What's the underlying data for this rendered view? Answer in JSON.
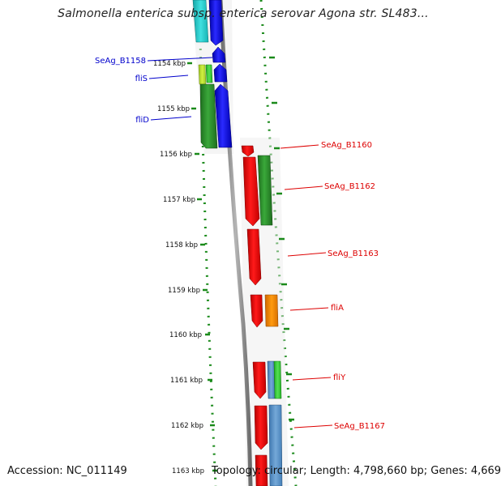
{
  "title": "Salmonella enterica subsp. enterica serovar Agona str. SL483...",
  "footer": {
    "accession": "Accession: NC_011149",
    "summary": "Topology: circular; Length: 4,798,660 bp; Genes: 4,669"
  },
  "colors": {
    "left_label": "#0000cc",
    "right_label": "#dd0000",
    "backbone": "#909090",
    "dotted_guide": "#1a8a1a"
  },
  "kbp_ticks": [
    {
      "kbp": 1154,
      "label": "1154 kbp"
    },
    {
      "kbp": 1155,
      "label": "1155 kbp"
    },
    {
      "kbp": 1156,
      "label": "1156 kbp"
    },
    {
      "kbp": 1157,
      "label": "1157 kbp"
    },
    {
      "kbp": 1158,
      "label": "1158 kbp"
    },
    {
      "kbp": 1159,
      "label": "1159 kbp"
    },
    {
      "kbp": 1160,
      "label": "1160 kbp"
    },
    {
      "kbp": 1161,
      "label": "1161 kbp"
    },
    {
      "kbp": 1162,
      "label": "1162 kbp"
    },
    {
      "kbp": 1163,
      "label": "1163 kbp"
    }
  ],
  "left_labels": [
    {
      "name": "SeAg_B1158",
      "color": "#0000cc"
    },
    {
      "name": "fliS",
      "color": "#0000cc"
    },
    {
      "name": "fliD",
      "color": "#0000cc"
    }
  ],
  "right_labels": [
    {
      "name": "SeAg_B1160",
      "color": "#dd0000"
    },
    {
      "name": "SeAg_B1162",
      "color": "#dd0000"
    },
    {
      "name": "SeAg_B1163",
      "color": "#dd0000"
    },
    {
      "name": "fliA",
      "color": "#dd0000"
    },
    {
      "name": "fliY",
      "color": "#dd0000"
    },
    {
      "name": "SeAg_B1167",
      "color": "#dd0000"
    }
  ]
}
